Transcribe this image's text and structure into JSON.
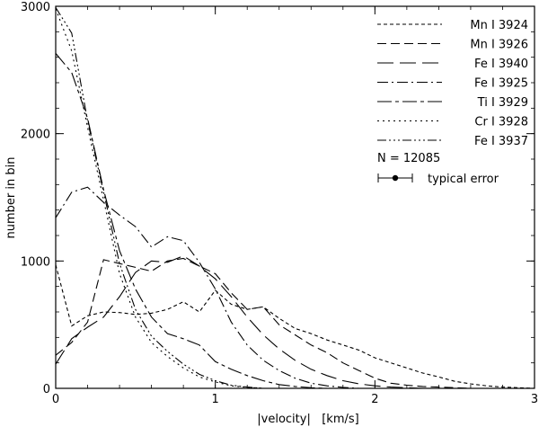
{
  "chart_data": {
    "type": "line",
    "title": "",
    "xlabel": "|velocity|   [km/s]",
    "ylabel": "number in bin",
    "xlim": [
      0,
      3
    ],
    "ylim": [
      0,
      3000
    ],
    "xticks": [
      0,
      1,
      2,
      3
    ],
    "yticks": [
      0,
      1000,
      2000,
      3000
    ],
    "legend_position": "top-right",
    "annotation": "N = 12085",
    "error_bar_label": "typical error",
    "series": [
      {
        "name": "Mn I 3924",
        "dash": "4,3",
        "points": [
          [
            0,
            970
          ],
          [
            0.1,
            490
          ],
          [
            0.2,
            570
          ],
          [
            0.3,
            600
          ],
          [
            0.4,
            595
          ],
          [
            0.5,
            580
          ],
          [
            0.6,
            590
          ],
          [
            0.7,
            620
          ],
          [
            0.8,
            680
          ],
          [
            0.9,
            600
          ],
          [
            1.0,
            770
          ],
          [
            1.1,
            660
          ],
          [
            1.2,
            620
          ],
          [
            1.3,
            640
          ],
          [
            1.4,
            550
          ],
          [
            1.5,
            470
          ],
          [
            1.6,
            430
          ],
          [
            1.7,
            380
          ],
          [
            1.8,
            340
          ],
          [
            1.9,
            300
          ],
          [
            2.0,
            240
          ],
          [
            2.1,
            200
          ],
          [
            2.2,
            160
          ],
          [
            2.3,
            120
          ],
          [
            2.4,
            90
          ],
          [
            2.5,
            55
          ],
          [
            2.6,
            35
          ],
          [
            2.7,
            20
          ],
          [
            2.8,
            10
          ],
          [
            2.9,
            5
          ],
          [
            3.0,
            0
          ]
        ]
      },
      {
        "name": "Mn I 3926",
        "dash": "10,5",
        "points": [
          [
            0,
            260
          ],
          [
            0.1,
            360
          ],
          [
            0.2,
            520
          ],
          [
            0.3,
            1010
          ],
          [
            0.4,
            980
          ],
          [
            0.5,
            950
          ],
          [
            0.6,
            920
          ],
          [
            0.7,
            1000
          ],
          [
            0.8,
            1020
          ],
          [
            0.9,
            960
          ],
          [
            1.0,
            900
          ],
          [
            1.1,
            750
          ],
          [
            1.2,
            620
          ],
          [
            1.3,
            640
          ],
          [
            1.4,
            500
          ],
          [
            1.5,
            420
          ],
          [
            1.6,
            340
          ],
          [
            1.7,
            280
          ],
          [
            1.8,
            200
          ],
          [
            1.9,
            140
          ],
          [
            2.0,
            80
          ],
          [
            2.1,
            40
          ],
          [
            2.2,
            25
          ],
          [
            2.3,
            15
          ],
          [
            2.4,
            10
          ],
          [
            2.5,
            5
          ],
          [
            2.6,
            0
          ],
          [
            3.0,
            0
          ]
        ]
      },
      {
        "name": "Fe I 3940",
        "dash": "18,7",
        "points": [
          [
            0,
            190
          ],
          [
            0.1,
            390
          ],
          [
            0.2,
            480
          ],
          [
            0.3,
            560
          ],
          [
            0.4,
            720
          ],
          [
            0.5,
            910
          ],
          [
            0.6,
            1000
          ],
          [
            0.7,
            990
          ],
          [
            0.8,
            1040
          ],
          [
            0.9,
            960
          ],
          [
            1.0,
            860
          ],
          [
            1.1,
            720
          ],
          [
            1.2,
            560
          ],
          [
            1.3,
            420
          ],
          [
            1.4,
            310
          ],
          [
            1.5,
            220
          ],
          [
            1.6,
            150
          ],
          [
            1.7,
            100
          ],
          [
            1.8,
            60
          ],
          [
            1.9,
            35
          ],
          [
            2.0,
            20
          ],
          [
            2.1,
            10
          ],
          [
            2.2,
            5
          ],
          [
            2.3,
            0
          ],
          [
            3.0,
            0
          ]
        ]
      },
      {
        "name": "Fe I 3925",
        "dash": "12,4,2,4",
        "points": [
          [
            0,
            1340
          ],
          [
            0.1,
            1540
          ],
          [
            0.2,
            1580
          ],
          [
            0.3,
            1460
          ],
          [
            0.4,
            1360
          ],
          [
            0.5,
            1270
          ],
          [
            0.6,
            1110
          ],
          [
            0.7,
            1190
          ],
          [
            0.8,
            1160
          ],
          [
            0.9,
            990
          ],
          [
            1.0,
            780
          ],
          [
            1.1,
            520
          ],
          [
            1.2,
            340
          ],
          [
            1.3,
            220
          ],
          [
            1.4,
            140
          ],
          [
            1.5,
            80
          ],
          [
            1.6,
            40
          ],
          [
            1.7,
            20
          ],
          [
            1.8,
            8
          ],
          [
            1.9,
            0
          ],
          [
            3.0,
            0
          ]
        ]
      },
      {
        "name": "Ti I 3929",
        "dash": "16,4,4,4",
        "points": [
          [
            0,
            2630
          ],
          [
            0.1,
            2480
          ],
          [
            0.2,
            2120
          ],
          [
            0.3,
            1560
          ],
          [
            0.4,
            1080
          ],
          [
            0.5,
            780
          ],
          [
            0.6,
            560
          ],
          [
            0.7,
            430
          ],
          [
            0.8,
            390
          ],
          [
            0.9,
            340
          ],
          [
            1.0,
            210
          ],
          [
            1.1,
            150
          ],
          [
            1.2,
            100
          ],
          [
            1.3,
            60
          ],
          [
            1.4,
            30
          ],
          [
            1.5,
            15
          ],
          [
            1.6,
            5
          ],
          [
            1.7,
            0
          ],
          [
            3.0,
            0
          ]
        ]
      },
      {
        "name": "Cr I 3928",
        "dash": "2,4",
        "points": [
          [
            0,
            2980
          ],
          [
            0.1,
            2650
          ],
          [
            0.2,
            2050
          ],
          [
            0.3,
            1480
          ],
          [
            0.4,
            900
          ],
          [
            0.5,
            560
          ],
          [
            0.6,
            360
          ],
          [
            0.7,
            250
          ],
          [
            0.8,
            160
          ],
          [
            0.9,
            90
          ],
          [
            1.0,
            50
          ],
          [
            1.1,
            20
          ],
          [
            1.2,
            8
          ],
          [
            1.3,
            0
          ],
          [
            3.0,
            0
          ]
        ]
      },
      {
        "name": "Fe I 3937",
        "dash": "10,3,2,3,2,3,2,3",
        "points": [
          [
            0,
            2990
          ],
          [
            0.1,
            2790
          ],
          [
            0.2,
            2100
          ],
          [
            0.3,
            1540
          ],
          [
            0.4,
            980
          ],
          [
            0.5,
            620
          ],
          [
            0.6,
            410
          ],
          [
            0.7,
            290
          ],
          [
            0.8,
            190
          ],
          [
            0.9,
            110
          ],
          [
            1.0,
            60
          ],
          [
            1.1,
            25
          ],
          [
            1.2,
            10
          ],
          [
            1.3,
            0
          ],
          [
            3.0,
            0
          ]
        ]
      }
    ]
  }
}
